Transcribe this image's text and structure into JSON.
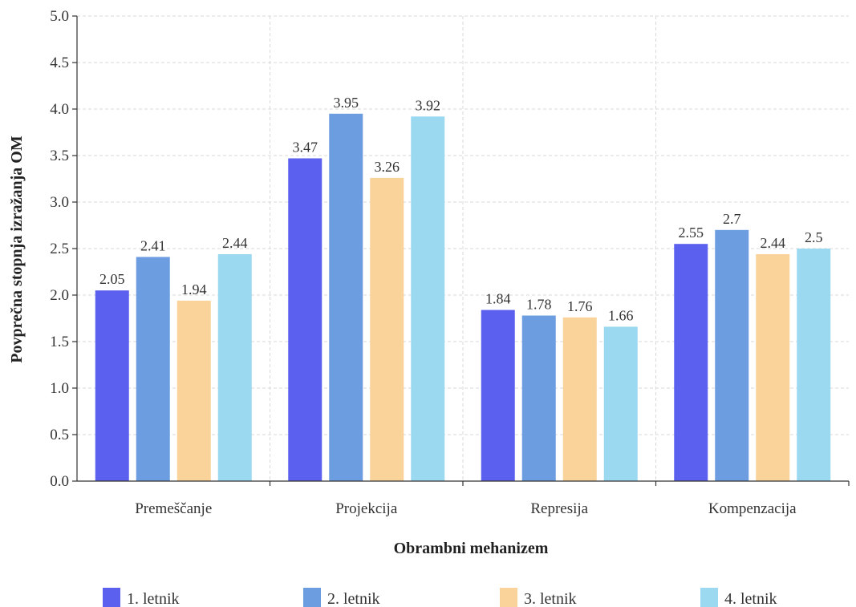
{
  "chart_data": {
    "type": "bar",
    "title": "",
    "xlabel": "Obrambni mehanizem",
    "ylabel": "Povprečna stopnja izražanja OM",
    "ylim": [
      0,
      5
    ],
    "yticks": [
      "0.0",
      "0.5",
      "1.0",
      "1.5",
      "2.0",
      "2.5",
      "3.0",
      "3.5",
      "4.0",
      "4.5",
      "5.0"
    ],
    "grid": true,
    "legend_position": "bottom",
    "categories": [
      "Premeščanje",
      "Projekcija",
      "Represija",
      "Kompenzacija"
    ],
    "series": [
      {
        "name": "1. letnik",
        "color": "#5B61EE",
        "values": [
          2.05,
          3.47,
          1.84,
          2.55
        ],
        "labels": [
          "2.05",
          "3.47",
          "1.84",
          "2.55"
        ]
      },
      {
        "name": "2. letnik",
        "color": "#6C9DE0",
        "values": [
          2.41,
          3.95,
          1.78,
          2.7
        ],
        "labels": [
          "2.41",
          "3.95",
          "1.78",
          "2.7"
        ]
      },
      {
        "name": "3. letnik",
        "color": "#F9D39A",
        "values": [
          1.94,
          3.26,
          1.76,
          2.44
        ],
        "labels": [
          "1.94",
          "3.26",
          "1.76",
          "2.44"
        ]
      },
      {
        "name": "4. letnik",
        "color": "#9BD9F0",
        "values": [
          2.44,
          3.92,
          1.66,
          2.5
        ],
        "labels": [
          "2.44",
          "3.92",
          "1.66",
          "2.5"
        ]
      }
    ]
  }
}
